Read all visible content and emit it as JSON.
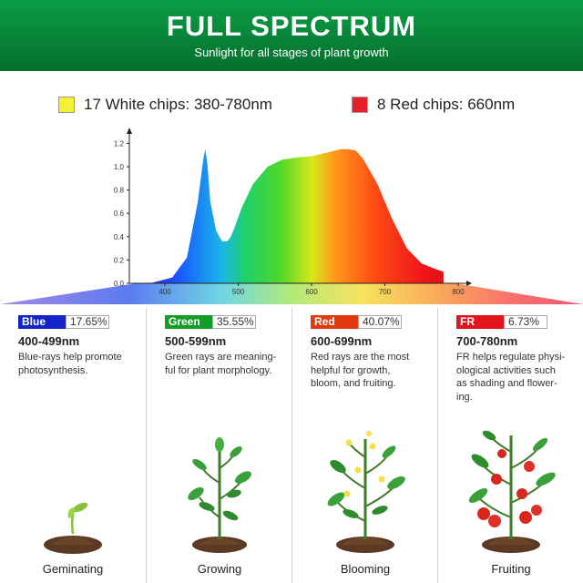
{
  "header": {
    "title": "FULL SPECTRUM",
    "subtitle": "Sunlight for all stages of plant growth"
  },
  "legend": {
    "white": {
      "label": "17 White chips: 380-780nm",
      "color": "#f4f132"
    },
    "red": {
      "label": "8 Red chips: 660nm",
      "color": "#e8202b"
    }
  },
  "chart_data": {
    "type": "area",
    "xlabel": "",
    "ylabel": "",
    "xlim": [
      350,
      820
    ],
    "ylim": [
      0,
      1.2
    ],
    "x_ticks": [
      "400",
      "500",
      "600",
      "700",
      "800"
    ],
    "y_ticks": [
      "0.0",
      "0.2",
      "0.4",
      "0.6",
      "0.8",
      "1.0",
      "1.2"
    ],
    "series": [
      {
        "x": [
          380,
          410,
          430,
          445,
          452,
          455,
          458,
          462,
          470,
          478,
          485,
          490,
          495,
          505,
          520,
          540,
          560,
          580,
          600,
          620,
          640,
          650,
          660,
          670,
          690,
          710,
          730,
          750,
          770,
          780
        ],
        "y": [
          0.0,
          0.05,
          0.22,
          0.7,
          1.05,
          1.15,
          1.02,
          0.7,
          0.45,
          0.36,
          0.36,
          0.4,
          0.48,
          0.65,
          0.85,
          1.0,
          1.06,
          1.08,
          1.09,
          1.12,
          1.15,
          1.15,
          1.14,
          1.07,
          0.85,
          0.55,
          0.3,
          0.17,
          0.12,
          0.1
        ]
      }
    ]
  },
  "columns": [
    {
      "name": "Blue",
      "color": "#1424c8",
      "percent": "17.65%",
      "range": "400-499nm",
      "desc": [
        "Blue-rays help promote",
        "photosynthesis."
      ],
      "stage": "Geminating"
    },
    {
      "name": "Green",
      "color": "#139e2a",
      "percent": "35.55%",
      "range": "500-599nm",
      "desc": [
        "Green rays are meaning-",
        "ful for plant morphology."
      ],
      "stage": "Growing"
    },
    {
      "name": "Red",
      "color": "#e23a10",
      "percent": "40.07%",
      "range": "600-699nm",
      "desc": [
        "Red rays are the most",
        "helpful for growth,",
        "bloom, and fruiting."
      ],
      "stage": "Blooming"
    },
    {
      "name": "FR",
      "color": "#e3141c",
      "percent": "6.73%",
      "range": "700-780nm",
      "desc": [
        "FR helps regulate physi-",
        "ological activities such",
        "as shading and flower-",
        "ing."
      ],
      "stage": "Fruiting"
    }
  ]
}
